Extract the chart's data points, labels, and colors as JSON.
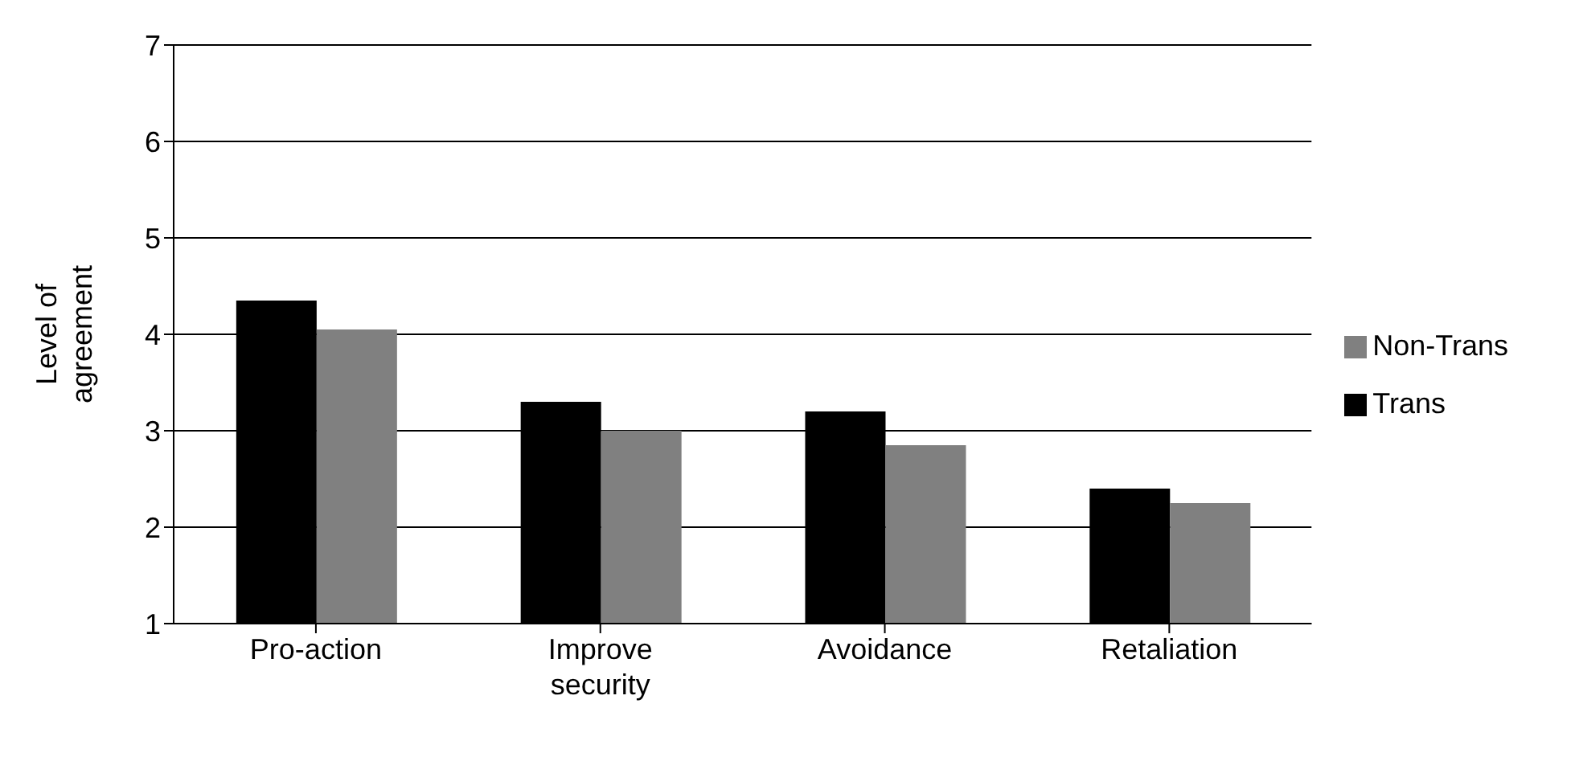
{
  "chart_data": {
    "type": "bar",
    "ylabel": "Level of agreement",
    "categories": [
      "Pro-action",
      "Improve security",
      "Avoidance",
      "Retaliation"
    ],
    "series": [
      {
        "name": "Trans",
        "color": "#000000",
        "values": [
          4.35,
          3.3,
          3.2,
          2.4
        ]
      },
      {
        "name": "Non-Trans",
        "color": "#808080",
        "values": [
          4.05,
          3.0,
          2.85,
          2.25
        ]
      }
    ],
    "ylim": [
      1,
      7
    ],
    "yticks": [
      1,
      2,
      3,
      4,
      5,
      6,
      7
    ],
    "grid": "y",
    "legend": "right"
  }
}
